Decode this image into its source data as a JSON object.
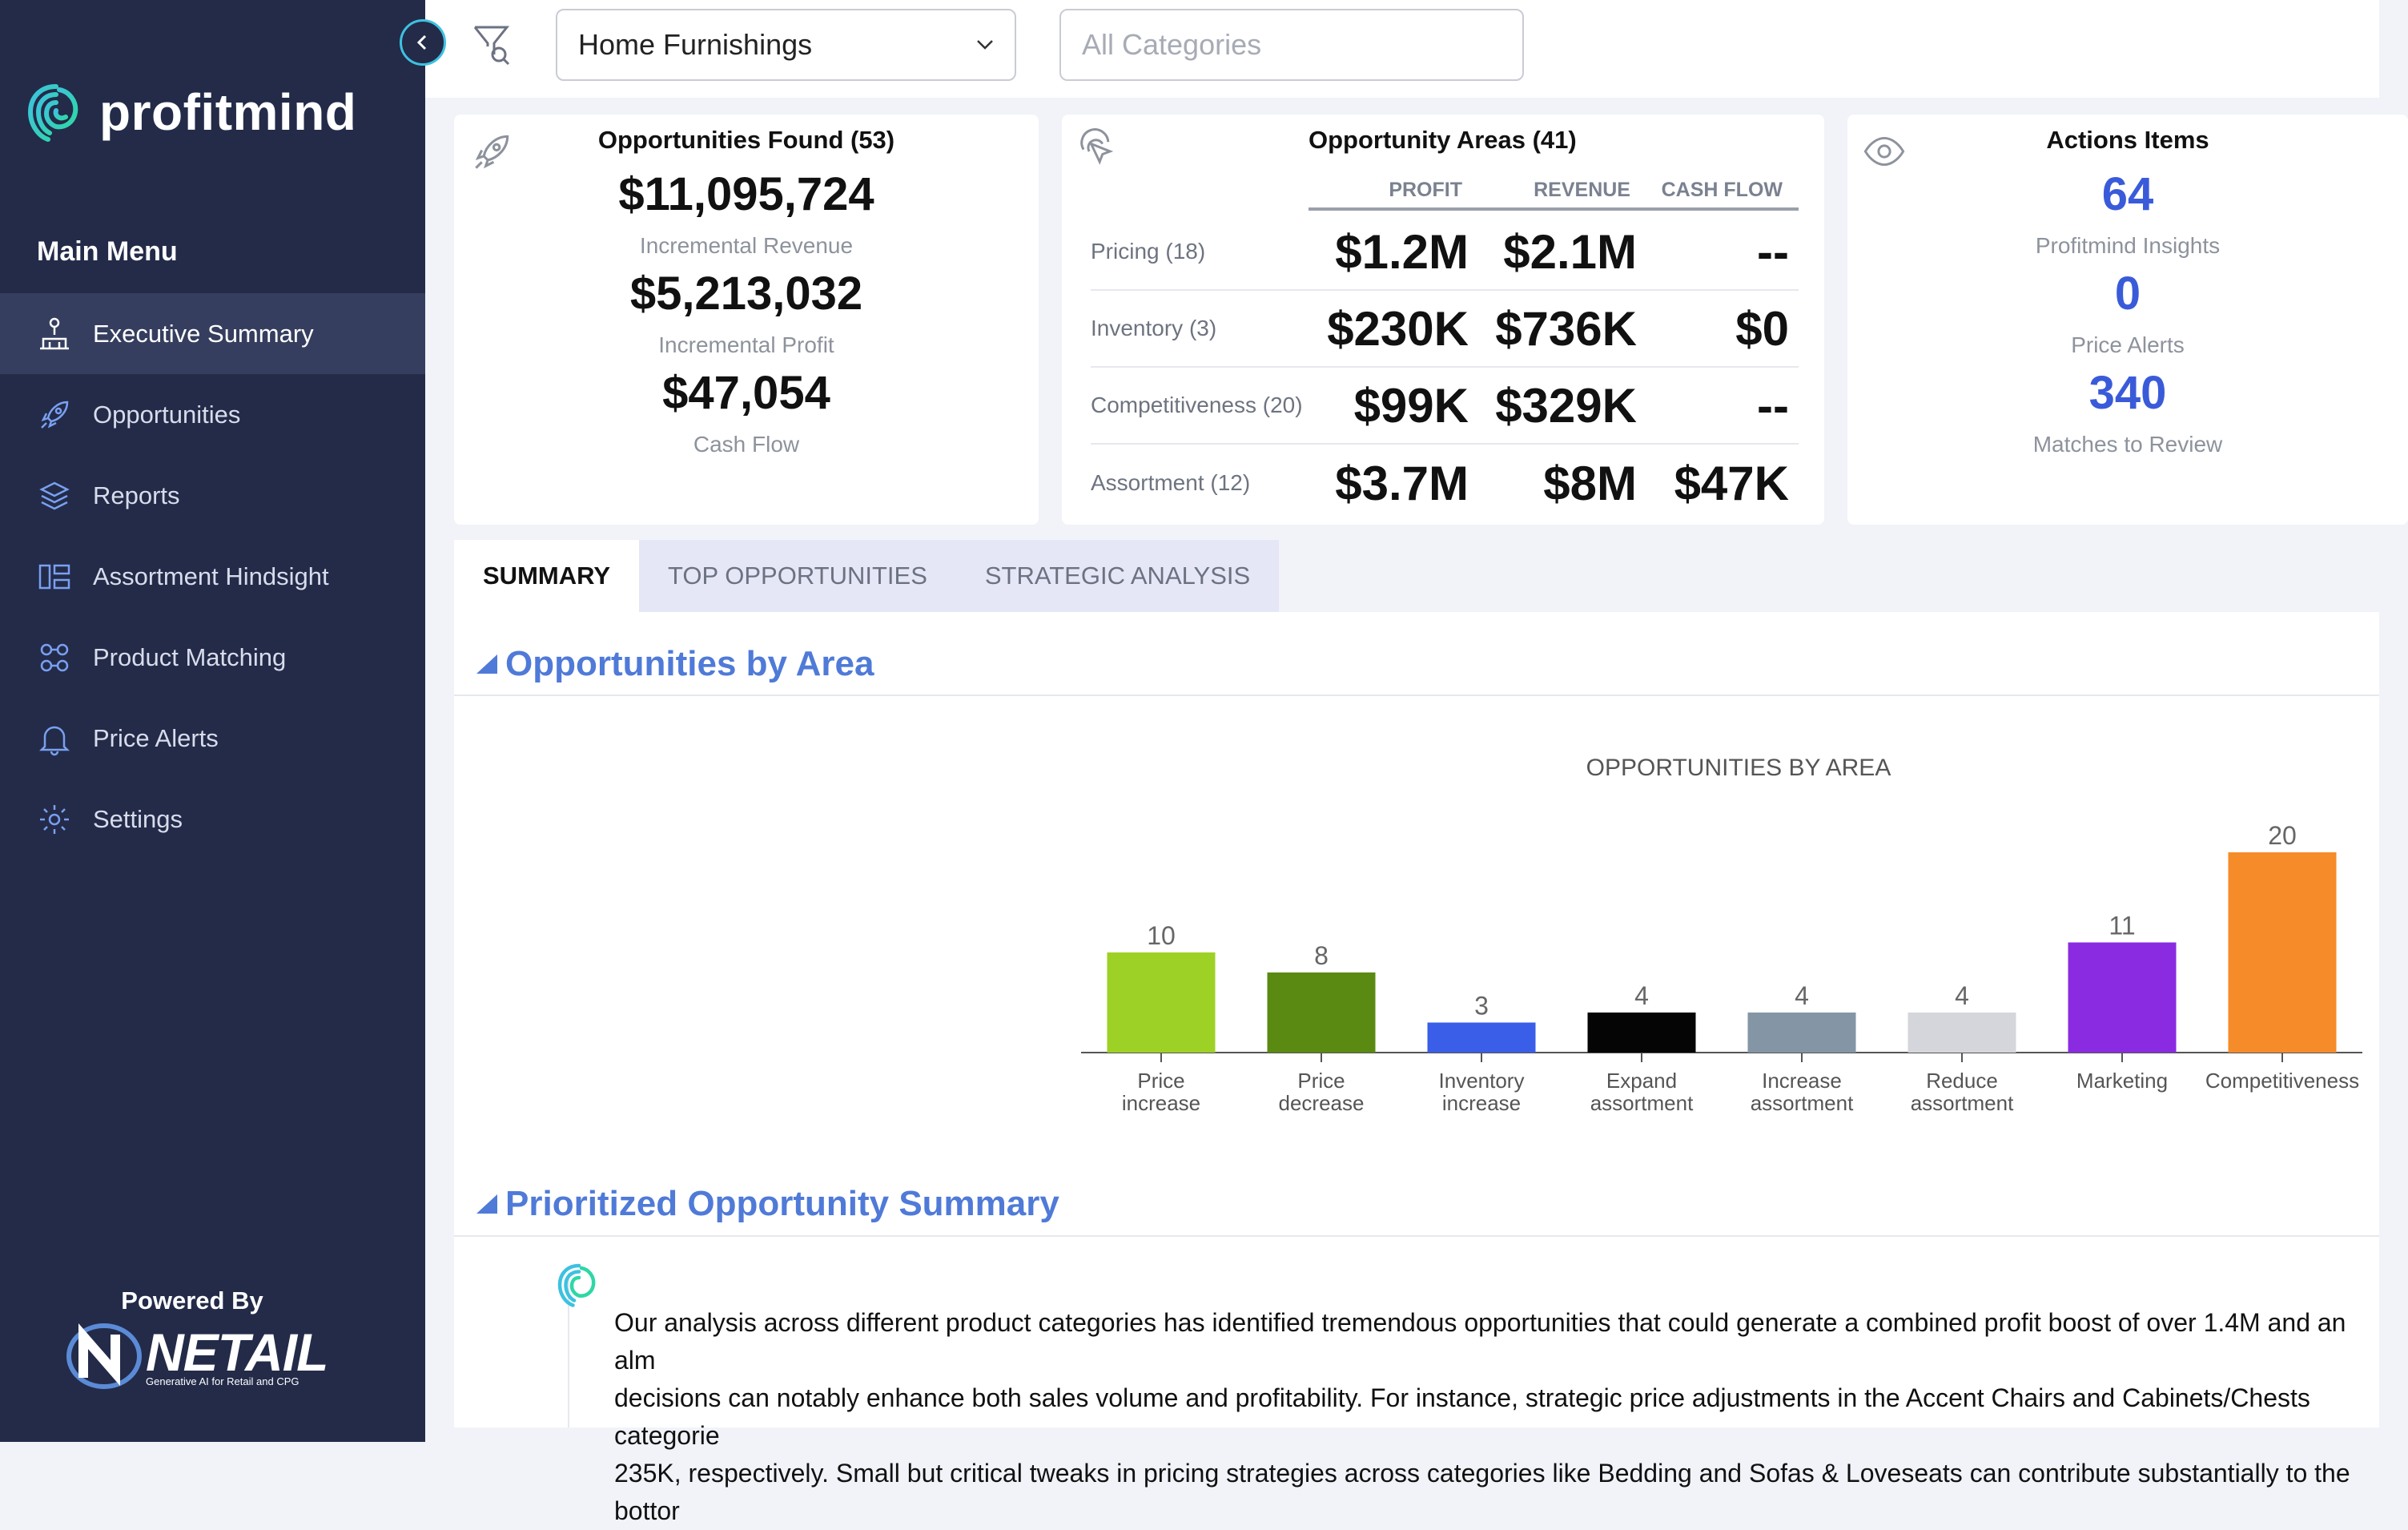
{
  "app": {
    "name": "profitmind"
  },
  "sidebar": {
    "menu_title": "Main Menu",
    "items": [
      {
        "label": "Executive Summary",
        "icon": "org-chart-icon",
        "active": true
      },
      {
        "label": "Opportunities",
        "icon": "rocket-icon"
      },
      {
        "label": "Reports",
        "icon": "layers-icon"
      },
      {
        "label": "Assortment Hindsight",
        "icon": "assortment-icon"
      },
      {
        "label": "Product Matching",
        "icon": "matching-icon"
      },
      {
        "label": "Price Alerts",
        "icon": "bell-icon"
      },
      {
        "label": "Settings",
        "icon": "gear-icon"
      }
    ],
    "powered_by": "Powered By",
    "partner_logo": "NETAIL",
    "partner_tagline": "Generative AI for Retail and CPG"
  },
  "topbar": {
    "department_value": "Home Furnishings",
    "category_placeholder": "All Categories"
  },
  "cards": {
    "opportunities_found": {
      "title": "Opportunities Found (53)",
      "revenue_value": "$11,095,724",
      "revenue_label": "Incremental Revenue",
      "profit_value": "$5,213,032",
      "profit_label": "Incremental Profit",
      "cash_value": "$47,054",
      "cash_label": "Cash Flow"
    },
    "opportunity_areas": {
      "title": "Opportunity Areas (41)",
      "columns": [
        "PROFIT",
        "REVENUE",
        "CASH FLOW"
      ],
      "rows": [
        {
          "label": "Pricing (18)",
          "profit": "$1.2M",
          "revenue": "$2.1M",
          "cash": "--"
        },
        {
          "label": "Inventory (3)",
          "profit": "$230K",
          "revenue": "$736K",
          "cash": "$0"
        },
        {
          "label": "Competitiveness (20)",
          "profit": "$99K",
          "revenue": "$329K",
          "cash": "--"
        },
        {
          "label": "Assortment (12)",
          "profit": "$3.7M",
          "revenue": "$8M",
          "cash": "$47K"
        }
      ]
    },
    "action_items": {
      "title": "Actions Items",
      "insights_value": "64",
      "insights_label": "Profitmind Insights",
      "alerts_value": "0",
      "alerts_label": "Price Alerts",
      "matches_value": "340",
      "matches_label": "Matches to Review"
    }
  },
  "tabs": [
    {
      "label": "SUMMARY",
      "active": true
    },
    {
      "label": "TOP OPPORTUNITIES"
    },
    {
      "label": "STRATEGIC ANALYSIS"
    }
  ],
  "sections": {
    "by_area_title": "Opportunities by Area",
    "summary_title": "Prioritized Opportunity Summary",
    "summary_text": "Our analysis across different product categories has identified tremendous opportunities that could generate a combined profit boost of over 1.4M and an alm\ndecisions can notably enhance both sales volume and profitability. For instance, strategic price adjustments in the Accent Chairs and Cabinets/Chests categorie\n235K, respectively. Small but critical tweaks in pricing strategies across categories like Bedding and Sofas & Loveseats can contribute substantially to the bottor"
  },
  "chart_data": {
    "type": "bar",
    "title": "OPPORTUNITIES BY AREA",
    "categories": [
      "Price increase",
      "Price decrease",
      "Inventory increase",
      "Expand assortment",
      "Increase assortment",
      "Reduce assortment",
      "Marketing",
      "Competitiveness"
    ],
    "category_lines": [
      [
        "Price",
        "increase"
      ],
      [
        "Price",
        "decrease"
      ],
      [
        "Inventory",
        "increase"
      ],
      [
        "Expand",
        "assortment"
      ],
      [
        "Increase",
        "assortment"
      ],
      [
        "Reduce",
        "assortment"
      ],
      [
        "Marketing"
      ],
      [
        "Competitiveness"
      ]
    ],
    "values": [
      10,
      8,
      3,
      4,
      4,
      4,
      11,
      20
    ],
    "colors": [
      "#9ed125",
      "#5a8a12",
      "#3a5ee8",
      "#050505",
      "#8496a6",
      "#d4d6dc",
      "#8a2be2",
      "#f68b2a"
    ],
    "grid": false,
    "xlabel": "",
    "ylabel": ""
  },
  "colors": {
    "sidebar_bg": "#232b49",
    "accent_blue": "#3a5bd9",
    "section_blue": "#4f7ad8",
    "teal": "#3ec1e0"
  }
}
